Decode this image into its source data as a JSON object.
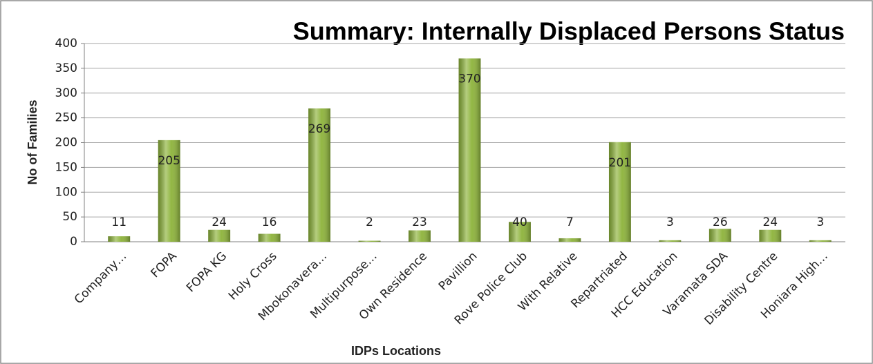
{
  "chart_data": {
    "type": "bar",
    "title": "Summary: Internally Displaced Persons Status",
    "x_label": "IDPs Locations",
    "y_label": "No of Families",
    "categories": [
      "Company…",
      "FOPA",
      "FOPA KG",
      "Holy Cross",
      "Mbokonavera…",
      "Multipurpose…",
      "Own Residence",
      "Pavillion",
      "Rove Police Club",
      "With Relative",
      "Repartriated",
      "HCC Education",
      "Varamata SDA",
      "Disability Centre",
      "Honiara High…"
    ],
    "values": [
      11,
      205,
      24,
      16,
      269,
      2,
      23,
      370,
      40,
      7,
      201,
      3,
      26,
      24,
      3
    ],
    "color": "#8db33a",
    "ylim": [
      0,
      400
    ],
    "yticks": [
      0,
      50,
      100,
      150,
      200,
      250,
      300,
      350,
      400
    ],
    "grid": true
  }
}
